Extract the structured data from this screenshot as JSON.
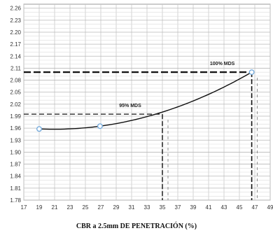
{
  "chart_data": {
    "type": "line",
    "xlabel": "CBR a 2.5mm DE PENETRACIÓN (%)",
    "ylabel": "",
    "xlim": [
      17,
      49
    ],
    "ylim": [
      1.78,
      2.27
    ],
    "x_ticks": [
      "17",
      "19",
      "21",
      "23",
      "25",
      "27",
      "29",
      "31",
      "33",
      "35",
      "37",
      "39",
      "41",
      "43",
      "45",
      "47",
      "49"
    ],
    "y_ticks": [
      "1.78",
      "1.81",
      "1.84",
      "1.87",
      "1.90",
      "1.93",
      "1.96",
      "1.99",
      "2.02",
      "2.05",
      "2.08",
      "2.11",
      "2.14",
      "2.17",
      "2.20",
      "2.23",
      "2.26"
    ],
    "series": [
      {
        "x": [
          19.0,
          26.9,
          46.6
        ],
        "y": [
          1.958,
          1.965,
          2.1
        ]
      }
    ],
    "annotations": [
      {
        "label": "100% MDS",
        "x": 46.6,
        "y": 2.1
      },
      {
        "label": "95% MDS",
        "x": 35.0,
        "y": 1.995
      }
    ],
    "grid": true,
    "colors": {
      "line": "#111111",
      "marker": "#6fa8dc",
      "grid": "#c8c8c8",
      "reference": "#111111"
    }
  }
}
